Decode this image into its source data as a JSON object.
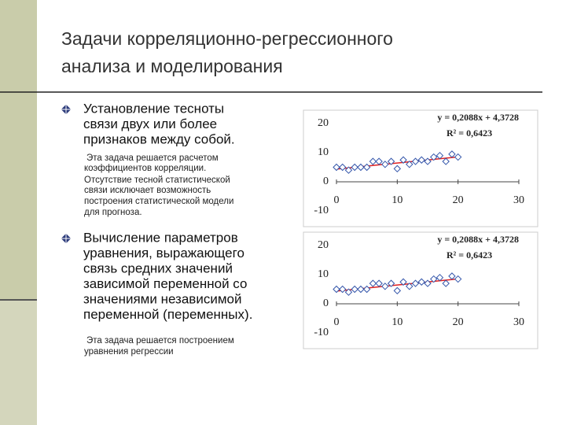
{
  "slide": {
    "title_lines": [
      "Задачи корреляционно-регрессионного",
      "анализа и моделирования"
    ],
    "bullets": [
      {
        "lines": [
          "Установление тесноты",
          "связи двух или более",
          "признаков между собой."
        ],
        "note_lines": [
          "Эта задача решается расчетом",
          "коэффициентов корреляции.",
          "Отсутствие  тесной статистической",
          "связи исключает возможность",
          "построения статистической модели",
          "для прогноза."
        ]
      },
      {
        "lines": [
          "Вычисление параметров",
          "уравнения, выражающего",
          "связь средних значений",
          "зависимой переменной со",
          "значениями независимой",
          "переменной (переменных)."
        ],
        "note_lines": [
          "Эта задача решается построением",
          "уравнения регрессии"
        ]
      }
    ]
  },
  "chart_data": [
    {
      "type": "scatter",
      "x": [
        0,
        1,
        2,
        3,
        4,
        5,
        6,
        7,
        8,
        9,
        10,
        11,
        12,
        13,
        14,
        15,
        16,
        17,
        18,
        19,
        20
      ],
      "values": [
        5,
        5,
        4,
        5,
        5,
        5,
        7,
        7,
        6,
        7,
        4.5,
        7.5,
        6,
        7,
        7.5,
        7,
        8.5,
        9,
        7,
        9.5,
        8.5
      ],
      "color": "#3355aa",
      "trendline": {
        "slope": 0.2088,
        "intercept": 4.3728,
        "color": "#e02020"
      },
      "equation": "y = 0,2088x + 4,3728",
      "r2_label": "R² = 0,6423",
      "xlim": [
        0,
        30
      ],
      "ylim": [
        -10,
        20
      ],
      "xticks": [
        0,
        10,
        20,
        30
      ],
      "yticks": [
        -10,
        0,
        10,
        20
      ]
    },
    {
      "type": "scatter",
      "x": [
        0,
        1,
        2,
        3,
        4,
        5,
        6,
        7,
        8,
        9,
        10,
        11,
        12,
        13,
        14,
        15,
        16,
        17,
        18,
        19,
        20
      ],
      "values": [
        5,
        5,
        4,
        5,
        5,
        5,
        7,
        7,
        6,
        7,
        4.5,
        7.5,
        6,
        7,
        7.5,
        7,
        8.5,
        9,
        7,
        9.5,
        8.5
      ],
      "color": "#3355aa",
      "trendline": {
        "slope": 0.2088,
        "intercept": 4.3728,
        "color": "#e02020"
      },
      "equation": "y = 0,2088x + 4,3728",
      "r2_label": "R² = 0,6423",
      "xlim": [
        0,
        30
      ],
      "ylim": [
        -10,
        20
      ],
      "xticks": [
        0,
        10,
        20,
        30
      ],
      "yticks": [
        -10,
        0,
        10,
        20
      ]
    }
  ]
}
